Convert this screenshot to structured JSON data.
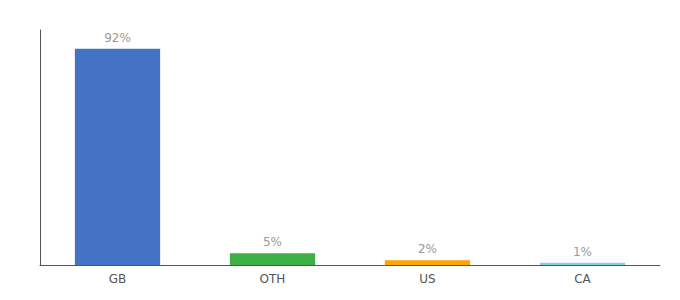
{
  "chart_data": {
    "type": "bar",
    "categories": [
      "GB",
      "OTH",
      "US",
      "CA"
    ],
    "values": [
      92,
      5,
      2,
      1
    ],
    "value_labels": [
      "92%",
      "5%",
      "2%",
      "1%"
    ],
    "colors": [
      "#4472c4",
      "#3cb043",
      "#ffa500",
      "#87ceeb"
    ],
    "ylim": [
      0,
      100
    ],
    "data_labels": true,
    "tick_labels": "x",
    "grid": false
  }
}
